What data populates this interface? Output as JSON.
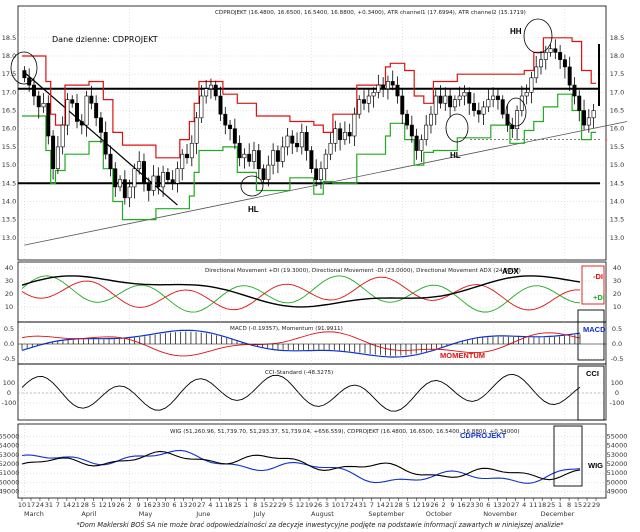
{
  "chart_data": [
    {
      "type": "line",
      "subtype": "candlestick",
      "panel": "price",
      "title": "CDPROJEKT (16.4800, 16.6500, 16.5400, 16.8800, +0.3400), ATR channel1 (17.6994), ATR channel2 (15.1719)",
      "label": "Dane dzienne: CDPROJEKT",
      "ylim": [
        12.5,
        19.1
      ],
      "yticks": [
        "18.5",
        "18.0",
        "17.5",
        "17.0",
        "16.5",
        "16.0",
        "15.5",
        "15.0",
        "14.5",
        "14.0",
        "13.5",
        "13.0"
      ],
      "support": 14.5,
      "resistance": 17.1,
      "hlines_dashed": [
        15.7
      ],
      "trendline_down": [
        [
          0,
          17.55
        ],
        [
          32,
          13.9
        ]
      ],
      "trendline_up": [
        [
          0,
          12.8
        ],
        [
          126,
          16.2
        ]
      ],
      "close": [
        17.4,
        17.2,
        16.9,
        16.6,
        16.7,
        15.8,
        14.9,
        15.5,
        16.1,
        16.8,
        16.7,
        16.2,
        16.1,
        16.9,
        16.7,
        16.3,
        15.9,
        15.3,
        14.9,
        14.4,
        14.6,
        14.1,
        14.4,
        14.9,
        15.1,
        14.5,
        14.3,
        14.7,
        14.4,
        14.8,
        14.6,
        14.5,
        14.9,
        15.3,
        15.2,
        15.6,
        16.3,
        16.9,
        17.1,
        17.2,
        16.9,
        16.4,
        16.1,
        16.0,
        15.6,
        15.2,
        15.3,
        15.1,
        15.4,
        14.9,
        14.6,
        15.0,
        15.4,
        15.1,
        15.5,
        15.8,
        15.6,
        15.5,
        15.9,
        15.4,
        14.9,
        14.6,
        14.9,
        15.3,
        15.6,
        16.0,
        15.7,
        15.9,
        15.8,
        16.4,
        16.8,
        16.7,
        16.9,
        17.0,
        17.2,
        17.1,
        17.3,
        17.2,
        16.9,
        16.4,
        16.1,
        15.8,
        15.4,
        15.7,
        16.1,
        16.4,
        16.9,
        16.7,
        16.9,
        16.6,
        16.8,
        16.9,
        17.0,
        16.7,
        16.5,
        16.4,
        16.6,
        16.8,
        16.9,
        16.8,
        16.4,
        16.1,
        16.0,
        16.5,
        16.9,
        17.0,
        17.4,
        17.7,
        17.9,
        18.1,
        18.2,
        18.1,
        17.9,
        17.7,
        17.2,
        16.9,
        16.5,
        16.1,
        16.3,
        16.5
      ],
      "atr_channel1_last": 17.6994,
      "atr_channel2_last": 15.1719,
      "annotations": [
        "HH",
        "HL",
        "HL",
        "HL"
      ],
      "marker": "↑"
    },
    {
      "type": "line",
      "panel": "dmi",
      "title": "Directional Movement +DI (19.3000), Directional Movement -DI (23.0000), Directional Movement ADX (24.0000)",
      "ylim": [
        0,
        40
      ],
      "yticks": [
        "40",
        "30",
        "20",
        "10"
      ],
      "series": [
        {
          "name": "+DI",
          "color": "#22aa22",
          "last": 19.3
        },
        {
          "name": "-DI",
          "color": "#dd1111",
          "last": 23.0
        },
        {
          "name": "ADX",
          "color": "#000000",
          "last": 24.0
        }
      ]
    },
    {
      "type": "line",
      "panel": "macd",
      "title": "MACD (-0.19357), Momentum (91.9911)",
      "ylim": [
        -0.6,
        0.6
      ],
      "yticks": [
        "0.5",
        "0.0",
        "-0.5"
      ],
      "series": [
        {
          "name": "MACD",
          "color": "#1133cc",
          "last": -0.19357
        },
        {
          "name": "Momentum",
          "color": "#dd1111",
          "last": 91.9911
        }
      ]
    },
    {
      "type": "line",
      "panel": "cci",
      "title": "CCI-Standard (-48.3275)",
      "ylim": [
        -250,
        250
      ],
      "yticks": [
        "100",
        "0",
        "-100"
      ],
      "series": [
        {
          "name": "CCI",
          "color": "#000000",
          "last": -48.3275
        }
      ]
    },
    {
      "type": "line",
      "panel": "wig",
      "title": "WIG (51,260.96, 51,739.70, 51,293.37, 51,739.04, +656.559), CDPROJEKT (16.4800, 16.6500, 16.5400, 16.8800, +0.34000)",
      "ylim": [
        48500,
        55500
      ],
      "yticks": [
        "55000",
        "54000",
        "53000",
        "52000",
        "51000",
        "50000",
        "49000"
      ],
      "series": [
        {
          "name": "WIG",
          "color": "#000000"
        },
        {
          "name": "CDPROJEKT",
          "color": "#1133cc"
        }
      ]
    }
  ],
  "panel_labels": {
    "adx": "ADX",
    "minus_di": "-DI",
    "plus_di": "+DI",
    "macd": "MACD",
    "momentum": "MOMENTUM",
    "cci": "CCI",
    "wig_cdprojekt": "CDPROJEKT",
    "wig": "WIG"
  },
  "x_axis": {
    "day_ticks": [
      "10",
      "17",
      "24",
      "31",
      "7",
      "14",
      "21",
      "28",
      "5",
      "12",
      "19",
      "26",
      "2",
      "9",
      "16",
      "23",
      "30",
      "6",
      "13",
      "20",
      "27",
      "4",
      "11",
      "18",
      "25",
      "1",
      "8",
      "15",
      "22",
      "29",
      "5",
      "12",
      "19",
      "26",
      "3",
      "10",
      "17",
      "24",
      "31",
      "7",
      "14",
      "21",
      "28",
      "5",
      "12",
      "19",
      "26",
      "2",
      "9",
      "16",
      "23",
      "30",
      "6",
      "13",
      "20",
      "27",
      "4",
      "11",
      "18",
      "25",
      "1",
      "8",
      "15",
      "22",
      "29"
    ],
    "months": [
      "March",
      "April",
      "May",
      "June",
      "July",
      "August",
      "September",
      "October",
      "November",
      "December"
    ]
  },
  "footer": "*Dom Maklerski BOŚ SA nie może brać odpowiedzialności za decyzje inwestycyjne podjęte na podstawie informacji zawartych w niniejszej analizie*",
  "colors": {
    "candle_up": "#ffffff",
    "candle_down": "#000000",
    "atr_upper": "#dd1111",
    "atr_lower": "#22aa22",
    "plus_di": "#22aa22",
    "minus_di": "#dd1111",
    "adx": "#000000",
    "macd": "#1133cc",
    "momentum": "#dd1111",
    "cci": "#000000",
    "wig": "#000000",
    "cdprojekt_overlay": "#1133cc"
  }
}
